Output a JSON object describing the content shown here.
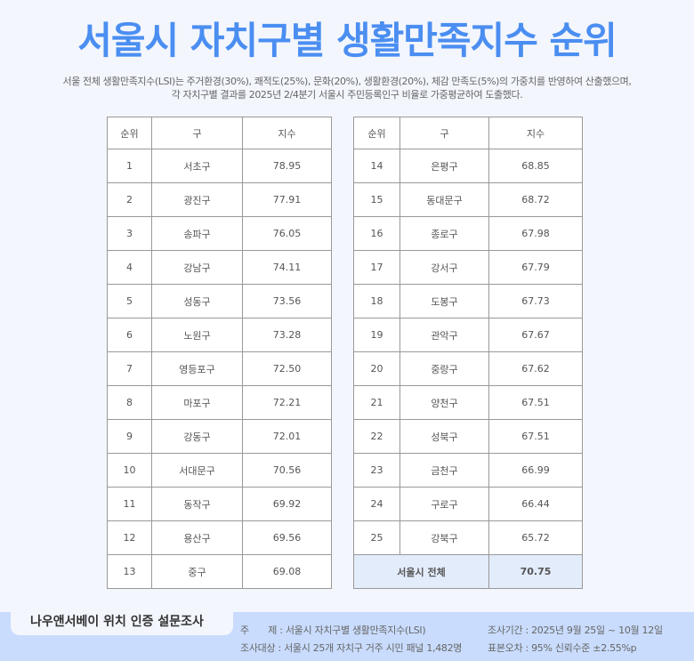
{
  "title": "서울시 자치구별 생활만족지수 순위",
  "description": [
    "서울 전체 생활만족지수(LSI)는 주거환경(30%), 쾌적도(25%), 문화(20%), 생활환경(20%), 체감 만족도(5%)의 가중치를 반영하여 산출했으며,",
    "각 자치구별 결과를 2025년 2/4분기 서울시 주민등록인구 비율로 가중평균하여 도출했다."
  ],
  "headers": [
    "순위",
    "구",
    "지수"
  ],
  "left_rows": [
    [
      "1",
      "서초구",
      "78.95"
    ],
    [
      "2",
      "광진구",
      "77.91"
    ],
    [
      "3",
      "송파구",
      "76.05"
    ],
    [
      "4",
      "강남구",
      "74.11"
    ],
    [
      "5",
      "성동구",
      "73.56"
    ],
    [
      "6",
      "노원구",
      "73.28"
    ],
    [
      "7",
      "영등포구",
      "72.50"
    ],
    [
      "8",
      "마포구",
      "72.21"
    ],
    [
      "9",
      "강동구",
      "72.01"
    ],
    [
      "10",
      "서대문구",
      "70.56"
    ],
    [
      "11",
      "동작구",
      "69.92"
    ],
    [
      "12",
      "용산구",
      "69.56"
    ],
    [
      "13",
      "중구",
      "69.08"
    ]
  ],
  "right_rows": [
    [
      "14",
      "은평구",
      "68.85"
    ],
    [
      "15",
      "동대문구",
      "68.72"
    ],
    [
      "16",
      "종로구",
      "67.98"
    ],
    [
      "17",
      "강서구",
      "67.79"
    ],
    [
      "18",
      "도봉구",
      "67.73"
    ],
    [
      "19",
      "관악구",
      "67.67"
    ],
    [
      "20",
      "중랑구",
      "67.62"
    ],
    [
      "21",
      "양천구",
      "67.51"
    ],
    [
      "22",
      "성북구",
      "67.51"
    ],
    [
      "23",
      "금천구",
      "66.99"
    ],
    [
      "24",
      "구로구",
      "66.44"
    ],
    [
      "25",
      "강북구",
      "65.72"
    ]
  ],
  "total": {
    "label": "서울시 전체",
    "value": "70.75"
  },
  "footer": {
    "source": "나우앤서베이 위치 인증 설문조사",
    "topic": "주　　제 : 서울시 자치구별 생활만족지수(LSI)",
    "target": "조사대상 : 서울시 25개 자치구 거주 시민 패널 1,482명",
    "period": "조사기간 : 2025년 9월 25일 ~ 10월 12일",
    "error": "표본오차 : 95% 신뢰수준 ±2.55%p"
  }
}
